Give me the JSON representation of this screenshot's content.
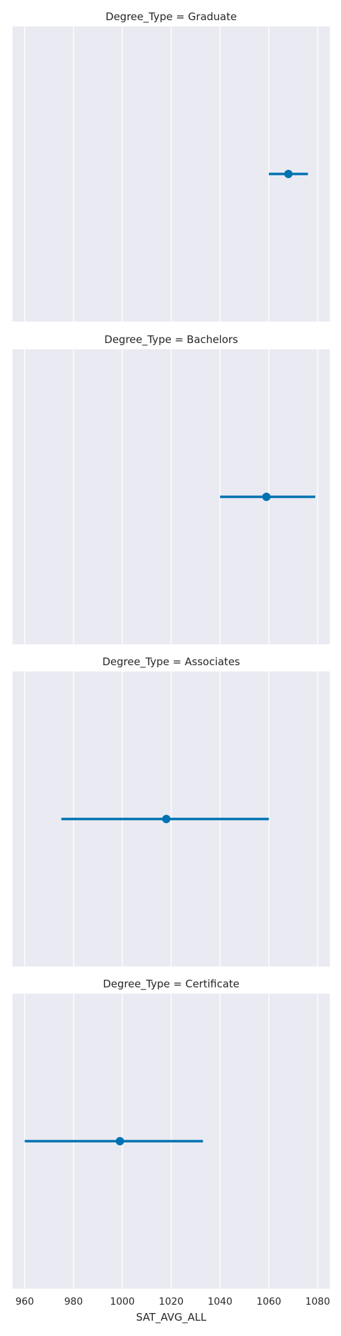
{
  "chart_data": {
    "type": "scatter",
    "style": "point plot with confidence interval error bars, faceted by row",
    "xlabel": "SAT_AVG_ALL",
    "xlim": [
      955,
      1085
    ],
    "xticks": [
      960,
      980,
      1000,
      1020,
      1040,
      1060,
      1080
    ],
    "grid": true,
    "color": "#0072b2",
    "background": "#eaeaf2",
    "panels": [
      {
        "title": "Degree_Type = Graduate",
        "mean": 1068,
        "ci_low": 1060,
        "ci_high": 1076
      },
      {
        "title": "Degree_Type = Bachelors",
        "mean": 1059,
        "ci_low": 1040,
        "ci_high": 1079
      },
      {
        "title": "Degree_Type = Associates",
        "mean": 1018,
        "ci_low": 975,
        "ci_high": 1060
      },
      {
        "title": "Degree_Type = Certificate",
        "mean": 999,
        "ci_low": 960,
        "ci_high": 1033
      }
    ]
  }
}
